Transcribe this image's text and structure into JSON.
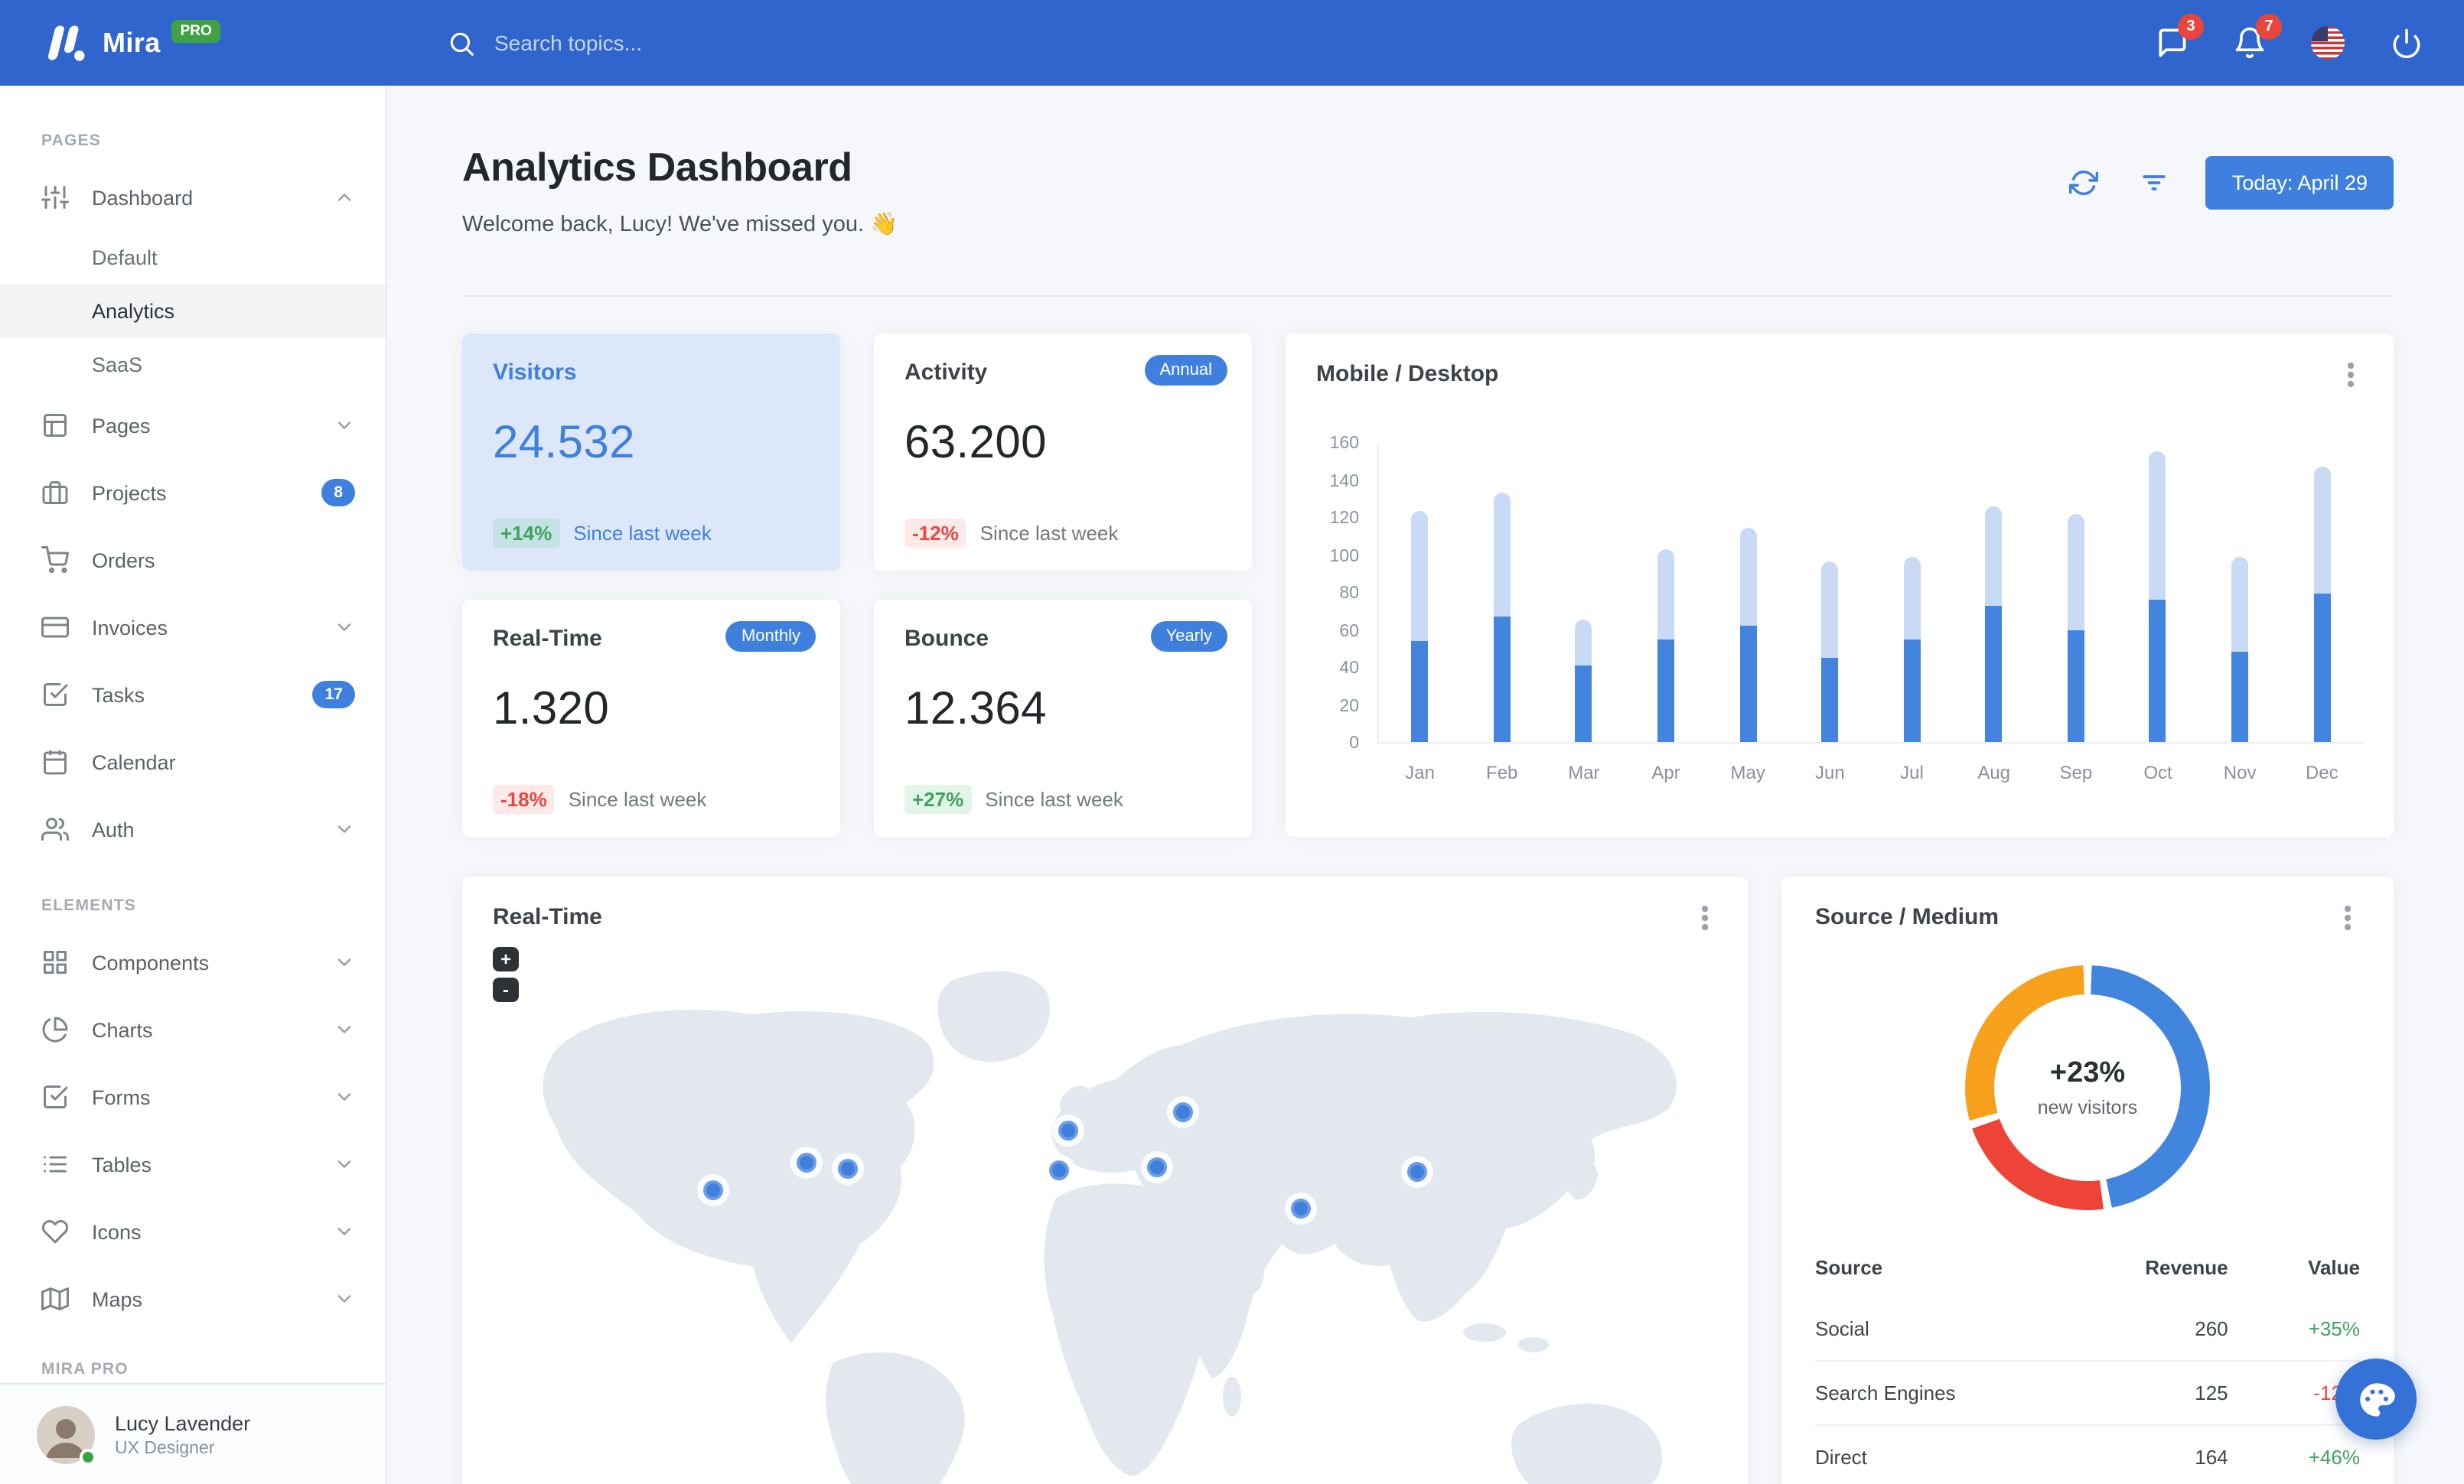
{
  "navbar": {
    "brand": "Mira",
    "brand_badge": "PRO",
    "search_placeholder": "Search topics...",
    "messages_count": "3",
    "notifications_count": "7",
    "icons": [
      "message-icon",
      "bell-icon",
      "us-flag-icon",
      "power-icon"
    ]
  },
  "sidebar": {
    "sections": [
      {
        "label": "PAGES",
        "items": [
          {
            "label": "Dashboard",
            "icon": "sliders-icon",
            "expanded": true,
            "children": [
              {
                "label": "Default"
              },
              {
                "label": "Analytics",
                "active": true
              },
              {
                "label": "SaaS"
              }
            ]
          },
          {
            "label": "Pages",
            "icon": "layout-icon",
            "chevron": "down"
          },
          {
            "label": "Projects",
            "icon": "briefcase-icon",
            "badge": "8"
          },
          {
            "label": "Orders",
            "icon": "shopping-cart-icon"
          },
          {
            "label": "Invoices",
            "icon": "credit-card-icon",
            "chevron": "down"
          },
          {
            "label": "Tasks",
            "icon": "check-square-icon",
            "badge": "17"
          },
          {
            "label": "Calendar",
            "icon": "calendar-icon"
          },
          {
            "label": "Auth",
            "icon": "users-icon",
            "chevron": "down"
          }
        ]
      },
      {
        "label": "ELEMENTS",
        "items": [
          {
            "label": "Components",
            "icon": "grid-icon",
            "chevron": "down"
          },
          {
            "label": "Charts",
            "icon": "pie-chart-icon",
            "chevron": "down"
          },
          {
            "label": "Forms",
            "icon": "check-square-icon",
            "chevron": "down"
          },
          {
            "label": "Tables",
            "icon": "list-icon",
            "chevron": "down"
          },
          {
            "label": "Icons",
            "icon": "heart-icon",
            "chevron": "down"
          },
          {
            "label": "Maps",
            "icon": "map-icon",
            "chevron": "down"
          }
        ]
      },
      {
        "label": "MIRA PRO",
        "items": []
      }
    ],
    "user": {
      "name": "Lucy Lavender",
      "role": "UX Designer",
      "status": "online"
    }
  },
  "header": {
    "title": "Analytics Dashboard",
    "subtitle": "Welcome back, Lucy! We've missed you. 👋",
    "today_button": "Today: April 29"
  },
  "stats": [
    {
      "title": "Visitors",
      "value": "24.532",
      "change": "+14%",
      "change_dir": "up",
      "note": "Since last week",
      "highlight": true
    },
    {
      "title": "Activity",
      "value": "63.200",
      "change": "-12%",
      "change_dir": "down",
      "note": "Since last week",
      "badge": "Annual"
    },
    {
      "title": "Real-Time",
      "value": "1.320",
      "change": "-18%",
      "change_dir": "down",
      "note": "Since last week",
      "badge": "Monthly"
    },
    {
      "title": "Bounce",
      "value": "12.364",
      "change": "+27%",
      "change_dir": "up",
      "note": "Since last week",
      "badge": "Yearly"
    }
  ],
  "chart_data": [
    {
      "type": "bar",
      "title": "Mobile / Desktop",
      "categories": [
        "Jan",
        "Feb",
        "Mar",
        "Apr",
        "May",
        "Jun",
        "Jul",
        "Aug",
        "Sep",
        "Oct",
        "Nov",
        "Dec"
      ],
      "series": [
        {
          "name": "Mobile",
          "color": "#4284DE",
          "values": [
            54,
            67,
            41,
            55,
            62,
            45,
            55,
            73,
            60,
            76,
            48,
            79
          ]
        },
        {
          "name": "Desktop",
          "color": "#C9DAF5",
          "values": [
            69,
            66,
            24,
            48,
            52,
            51,
            44,
            53,
            62,
            79,
            51,
            68
          ]
        }
      ],
      "stacked": true,
      "ylim": [
        0,
        160
      ],
      "yticks": [
        0,
        20,
        40,
        60,
        80,
        100,
        120,
        140,
        160
      ],
      "grid": false,
      "legend": "none"
    },
    {
      "type": "pie",
      "title": "Source / Medium",
      "center_value": "+23%",
      "center_label": "new visitors",
      "slices": [
        {
          "label": "Social",
          "value": 260,
          "color": "#4285DE"
        },
        {
          "label": "Search Engines",
          "value": 125,
          "color": "#EE4437"
        },
        {
          "label": "Direct",
          "value": 164,
          "color": "#F6A01B"
        }
      ],
      "donut": true
    }
  ],
  "map": {
    "title": "Real-Time",
    "zoom_in": "+",
    "zoom_out": "-",
    "marker_locations": 9,
    "markers": [
      {
        "x": 164,
        "y": 205
      },
      {
        "x": 225,
        "y": 187
      },
      {
        "x": 252,
        "y": 191
      },
      {
        "x": 396,
        "y": 166
      },
      {
        "x": 390,
        "y": 192
      },
      {
        "x": 471,
        "y": 154
      },
      {
        "x": 454,
        "y": 190
      },
      {
        "x": 548,
        "y": 217
      },
      {
        "x": 624,
        "y": 193
      }
    ]
  },
  "source_card": {
    "title": "Source / Medium"
  },
  "source_table": {
    "columns": [
      "Source",
      "Revenue",
      "Value"
    ],
    "rows": [
      {
        "source": "Social",
        "revenue": "260",
        "value": "+35%",
        "dir": "up"
      },
      {
        "source": "Search Engines",
        "revenue": "125",
        "value": "-12%",
        "dir": "down"
      },
      {
        "source": "Direct",
        "revenue": "164",
        "value": "+46%",
        "dir": "up"
      }
    ]
  },
  "colors": {
    "navbar": "#2F65CD",
    "accent": "#3F80DE",
    "success": "#3FA45B",
    "danger": "#E8483F",
    "badge_red": "#E8453C",
    "page_bg": "#F5F7FB",
    "bar_mobile": "#4284DE",
    "bar_desktop": "#C9DAF5",
    "pie_blue": "#4285DE",
    "pie_red": "#EE4437",
    "pie_orange": "#F6A01B"
  }
}
